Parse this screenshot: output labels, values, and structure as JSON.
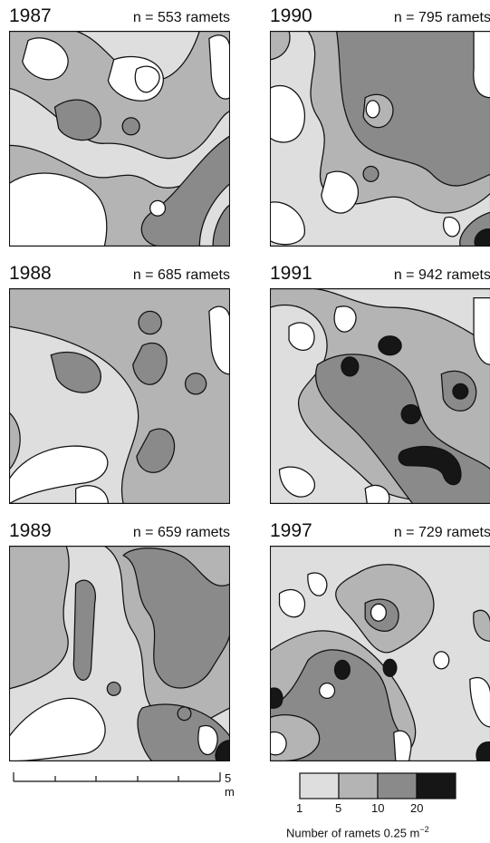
{
  "panels": [
    {
      "year": "1987",
      "count": "n = 553 ramets"
    },
    {
      "year": "1990",
      "count": "n = 795 ramets"
    },
    {
      "year": "1988",
      "count": "n = 685 ramets"
    },
    {
      "year": "1991",
      "count": "n = 942 ramets"
    },
    {
      "year": "1989",
      "count": "n = 659 ramets"
    },
    {
      "year": "1997",
      "count": "n = 729 ramets"
    }
  ],
  "scale_bar": {
    "label": "5 m"
  },
  "legend": {
    "ticks": [
      "1",
      "5",
      "10",
      "20"
    ],
    "title": "Number of ramets  0.25 m",
    "title_exponent": "−2",
    "colors": [
      "#dedede",
      "#b4b4b4",
      "#8a8a8a",
      "#161616"
    ]
  }
}
